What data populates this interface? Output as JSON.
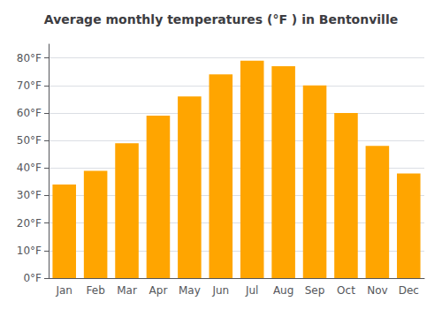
{
  "chart_data": {
    "type": "bar",
    "title": "Average monthly temperatures (°F ) in Bentonville",
    "categories": [
      "Jan",
      "Feb",
      "Mar",
      "Apr",
      "May",
      "Jun",
      "Jul",
      "Aug",
      "Sep",
      "Oct",
      "Nov",
      "Dec"
    ],
    "values": [
      34,
      39,
      49,
      59,
      66,
      74,
      79,
      77,
      70,
      60,
      48,
      38
    ],
    "color": "#FFA500",
    "ylim": [
      0,
      85
    ],
    "yticks": [
      {
        "value": 0,
        "label": "0°F"
      },
      {
        "value": 10,
        "label": "10°F"
      },
      {
        "value": 20,
        "label": "20°F"
      },
      {
        "value": 30,
        "label": "30°F"
      },
      {
        "value": 40,
        "label": "40°F"
      },
      {
        "value": 50,
        "label": "50°F"
      },
      {
        "value": 60,
        "label": "60°F"
      },
      {
        "value": 70,
        "label": "70°F"
      },
      {
        "value": 80,
        "label": "80°F"
      }
    ],
    "grid": true
  }
}
